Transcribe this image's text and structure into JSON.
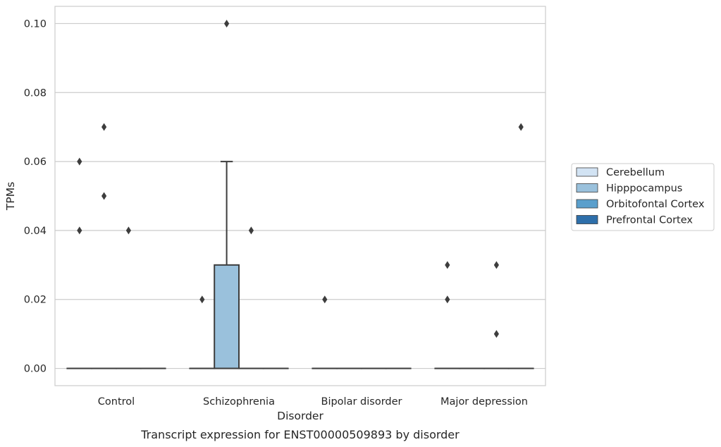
{
  "caption": "Transcript expression for ENST00000509893 by disorder",
  "chart_data": {
    "type": "box",
    "title": "",
    "xlabel": "Disorder",
    "ylabel": "TPMs",
    "categories": [
      "Control",
      "Schizophrenia",
      "Bipolar disorder",
      "Major depression"
    ],
    "ylim": [
      -0.005,
      0.105
    ],
    "yticks": [
      0.0,
      0.02,
      0.04,
      0.06,
      0.08,
      0.1
    ],
    "ytick_labels": [
      "0.00",
      "0.02",
      "0.04",
      "0.06",
      "0.08",
      "0.10"
    ],
    "grid": "horizontal",
    "legend_position": "right",
    "series": [
      {
        "name": "Cerebellum",
        "color": "#d2e3f3",
        "boxes": [
          {
            "category": "Control",
            "q1": 0,
            "median": 0,
            "q3": 0,
            "whisker_low": 0,
            "whisker_high": 0,
            "outliers": [
              0.04,
              0.06
            ]
          },
          {
            "category": "Schizophrenia",
            "q1": 0,
            "median": 0,
            "q3": 0,
            "whisker_low": 0,
            "whisker_high": 0,
            "outliers": [
              0.02
            ]
          },
          {
            "category": "Bipolar disorder",
            "q1": 0,
            "median": 0,
            "q3": 0,
            "whisker_low": 0,
            "whisker_high": 0,
            "outliers": [
              0.02
            ]
          },
          {
            "category": "Major depression",
            "q1": 0,
            "median": 0,
            "q3": 0,
            "whisker_low": 0,
            "whisker_high": 0,
            "outliers": [
              0.02,
              0.03
            ]
          }
        ]
      },
      {
        "name": "Hipppocampus",
        "color": "#9ac1dc",
        "boxes": [
          {
            "category": "Control",
            "q1": 0,
            "median": 0,
            "q3": 0,
            "whisker_low": 0,
            "whisker_high": 0,
            "outliers": [
              0.05,
              0.07
            ]
          },
          {
            "category": "Schizophrenia",
            "q1": 0,
            "median": 0,
            "q3": 0.03,
            "whisker_low": 0,
            "whisker_high": 0.06,
            "outliers": [
              0.1
            ]
          },
          {
            "category": "Bipolar disorder",
            "q1": 0,
            "median": 0,
            "q3": 0,
            "whisker_low": 0,
            "whisker_high": 0,
            "outliers": []
          },
          {
            "category": "Major depression",
            "q1": 0,
            "median": 0,
            "q3": 0,
            "whisker_low": 0,
            "whisker_high": 0,
            "outliers": []
          }
        ]
      },
      {
        "name": "Orbitofontal Cortex",
        "color": "#5a9fcc",
        "boxes": [
          {
            "category": "Control",
            "q1": 0,
            "median": 0,
            "q3": 0,
            "whisker_low": 0,
            "whisker_high": 0,
            "outliers": [
              0.04
            ]
          },
          {
            "category": "Schizophrenia",
            "q1": 0,
            "median": 0,
            "q3": 0,
            "whisker_low": 0,
            "whisker_high": 0,
            "outliers": [
              0.04
            ]
          },
          {
            "category": "Bipolar disorder",
            "q1": 0,
            "median": 0,
            "q3": 0,
            "whisker_low": 0,
            "whisker_high": 0,
            "outliers": []
          },
          {
            "category": "Major depression",
            "q1": 0,
            "median": 0,
            "q3": 0,
            "whisker_low": 0,
            "whisker_high": 0,
            "outliers": [
              0.01,
              0.03
            ]
          }
        ]
      },
      {
        "name": "Prefrontal Cortex",
        "color": "#2e6faa",
        "boxes": [
          {
            "category": "Control",
            "q1": 0,
            "median": 0,
            "q3": 0,
            "whisker_low": 0,
            "whisker_high": 0,
            "outliers": []
          },
          {
            "category": "Schizophrenia",
            "q1": 0,
            "median": 0,
            "q3": 0,
            "whisker_low": 0,
            "whisker_high": 0,
            "outliers": []
          },
          {
            "category": "Bipolar disorder",
            "q1": 0,
            "median": 0,
            "q3": 0,
            "whisker_low": 0,
            "whisker_high": 0,
            "outliers": []
          },
          {
            "category": "Major depression",
            "q1": 0,
            "median": 0,
            "q3": 0,
            "whisker_low": 0,
            "whisker_high": 0,
            "outliers": [
              0.07
            ]
          }
        ]
      }
    ]
  }
}
